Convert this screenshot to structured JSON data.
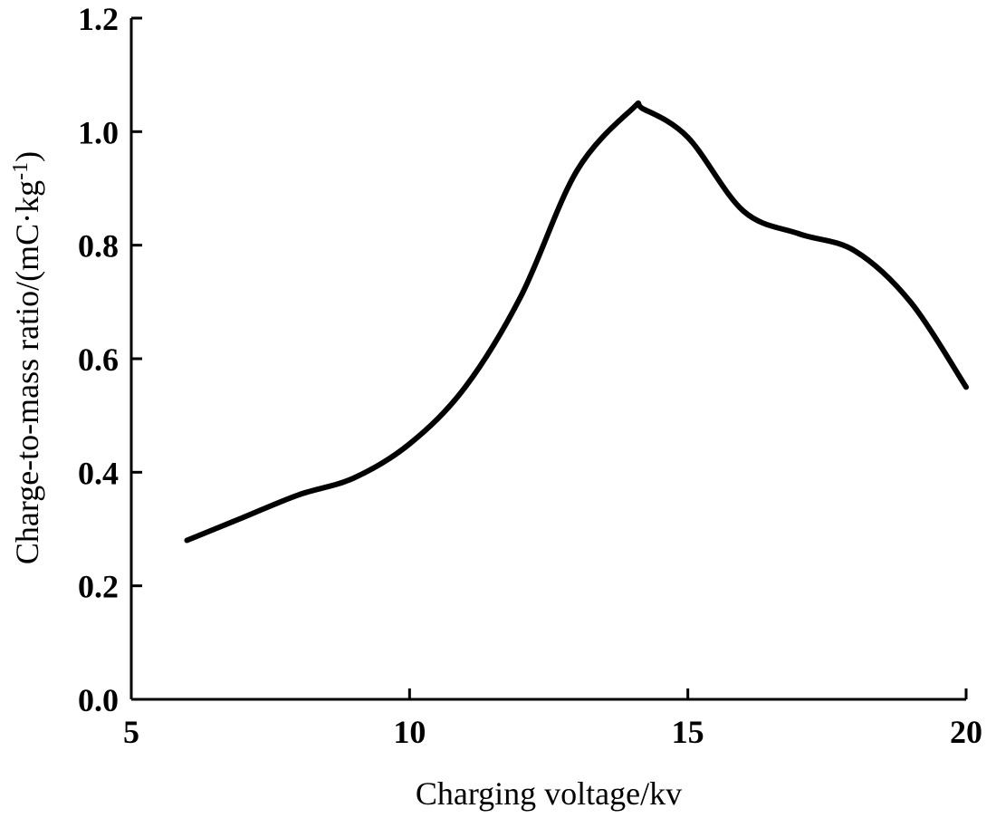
{
  "chart_data": {
    "type": "line",
    "title": "",
    "xlabel": "Charging voltage/kv",
    "ylabel": {
      "main": "Charge-to-mass ratio/(mC·kg",
      "superscript": "-1",
      "close": ")"
    },
    "xlim": [
      5,
      20
    ],
    "ylim": [
      0.0,
      1.2
    ],
    "xticks": [
      5,
      10,
      15,
      20
    ],
    "xtick_labels": [
      "5",
      "10",
      "15",
      "20"
    ],
    "yticks": [
      0.0,
      0.2,
      0.4,
      0.6,
      0.8,
      1.0,
      1.2
    ],
    "ytick_labels": [
      "0.0",
      "0.2",
      "0.4",
      "0.6",
      "0.8",
      "1.0",
      "1.2"
    ],
    "grid": false,
    "series": [
      {
        "color": "#000000",
        "x": [
          6,
          7,
          8,
          9,
          10,
          11,
          12,
          13,
          14,
          14.2,
          15,
          16,
          17,
          18,
          19,
          20
        ],
        "y": [
          0.28,
          0.32,
          0.36,
          0.39,
          0.45,
          0.55,
          0.71,
          0.93,
          1.04,
          1.04,
          0.99,
          0.86,
          0.82,
          0.79,
          0.7,
          0.55
        ]
      }
    ]
  }
}
